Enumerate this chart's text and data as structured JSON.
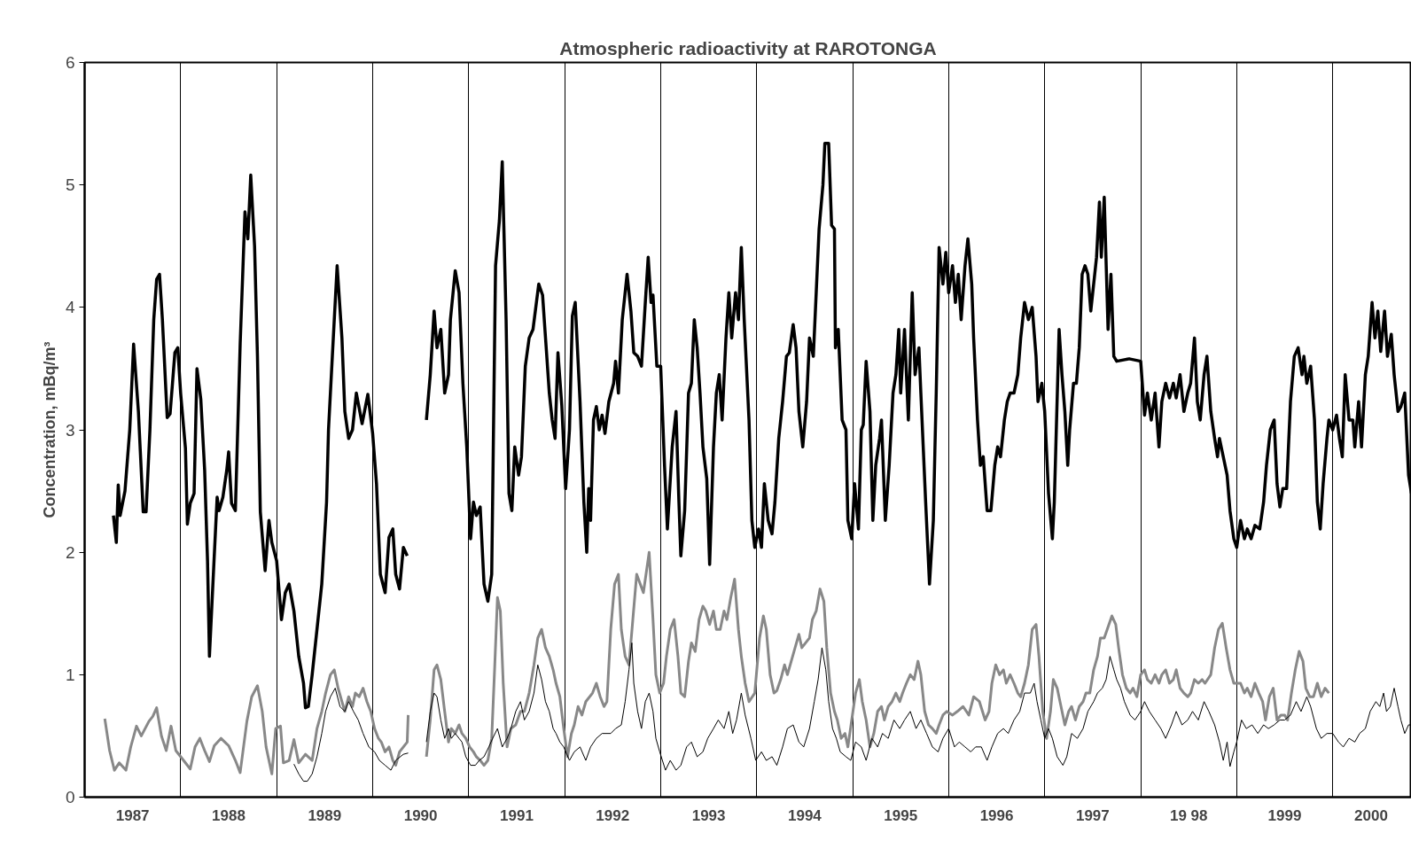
{
  "chart_data": {
    "type": "line",
    "title": "Atmospheric radioactivity at RAROTONGA",
    "ylabel": "Concentration, mBq/m³",
    "xlim": [
      1987,
      2000.82
    ],
    "ylim": [
      0,
      6
    ],
    "yticks": [
      0,
      1,
      2,
      3,
      4,
      5,
      6
    ],
    "xticks": [
      {
        "value": 1987.5,
        "label": "1987"
      },
      {
        "value": 1988.5,
        "label": "1988"
      },
      {
        "value": 1989.5,
        "label": "1989"
      },
      {
        "value": 1990.5,
        "label": "1990"
      },
      {
        "value": 1991.5,
        "label": "1991"
      },
      {
        "value": 1992.5,
        "label": "1992"
      },
      {
        "value": 1993.5,
        "label": "1993"
      },
      {
        "value": 1994.5,
        "label": "1994"
      },
      {
        "value": 1995.5,
        "label": "1995"
      },
      {
        "value": 1996.5,
        "label": "1996"
      },
      {
        "value": 1997.5,
        "label": "1997"
      },
      {
        "value": 1998.5,
        "label": "19 98"
      },
      {
        "value": 1999.5,
        "label": "1999"
      },
      {
        "value": 2000.4,
        "label": "2000"
      },
      {
        "value": 1988,
        "label": null
      },
      {
        "value": 1989,
        "label": null
      },
      {
        "value": 1990,
        "label": null
      },
      {
        "value": 1991,
        "label": null
      },
      {
        "value": 1992,
        "label": null
      },
      {
        "value": 1993,
        "label": null
      },
      {
        "value": 1994,
        "label": null
      },
      {
        "value": 1995,
        "label": null
      },
      {
        "value": 1996,
        "label": null
      },
      {
        "value": 1997,
        "label": null
      },
      {
        "value": 1998,
        "label": null
      },
      {
        "value": 1999,
        "label": null
      },
      {
        "value": 2000,
        "label": null
      }
    ],
    "grid": "x",
    "marker": "none",
    "line_style": "solid",
    "series": [
      {
        "color": "#000000",
        "x": [
          1987.3,
          1987.33,
          1987.35,
          1987.37,
          1987.42,
          1987.47,
          1987.51,
          1987.56,
          1987.61,
          1987.64,
          1987.68,
          1987.72,
          1987.75,
          1987.78,
          1987.81,
          1987.86,
          1987.89,
          1987.94,
          1987.97,
          1988.0,
          1988.05,
          1988.07,
          1988.1,
          1988.14,
          1988.17,
          1988.21,
          1988.25,
          1988.28,
          1988.3,
          1988.35,
          1988.38,
          1988.4,
          1988.44,
          1988.48,
          1988.5,
          1988.53,
          1988.57,
          1988.62,
          1988.67,
          1988.7,
          1988.73,
          1988.77,
          1988.8,
          1988.83,
          1988.88,
          1988.92,
          1988.95,
          1989.0,
          1989.05,
          1989.09,
          1989.13,
          1989.18,
          1989.23,
          1989.28,
          1989.3,
          1989.33,
          1989.37,
          1989.42,
          1989.47,
          1989.52,
          1989.54,
          1989.58,
          1989.63,
          1989.68,
          1989.71,
          1989.75,
          1989.79,
          1989.83,
          1989.89,
          1989.95,
          1990.0,
          1990.04,
          1990.08,
          1990.13,
          1990.17,
          1990.21,
          1990.24,
          1990.28,
          1990.32,
          1990.36,
          1990.46,
          1990.56,
          1990.6,
          1990.64,
          1990.67,
          1990.71,
          1990.75,
          1990.79,
          1990.81,
          1990.86,
          1990.9,
          1990.94,
          1990.98,
          1991.02,
          1991.05,
          1991.08,
          1991.12,
          1991.16,
          1991.2,
          1991.24,
          1991.28,
          1991.32,
          1991.35,
          1991.39,
          1991.42,
          1991.45,
          1991.48,
          1991.52,
          1991.55,
          1991.59,
          1991.63,
          1991.67,
          1991.73,
          1991.77,
          1991.84,
          1991.87,
          1991.9,
          1991.93,
          1991.97,
          1992.01,
          1992.05,
          1992.08,
          1992.11,
          1992.16,
          1992.2,
          1992.23,
          1992.25,
          1992.27,
          1992.3,
          1992.33,
          1992.36,
          1992.39,
          1992.42,
          1992.46,
          1992.51,
          1992.53,
          1992.56,
          1992.6,
          1992.65,
          1992.69,
          1992.72,
          1992.76,
          1992.8,
          1992.84,
          1992.87,
          1992.9,
          1992.92,
          1992.96,
          1993.0,
          1993.04,
          1993.07,
          1993.12,
          1993.16,
          1993.19,
          1993.21,
          1993.25,
          1993.29,
          1993.32,
          1993.35,
          1993.38,
          1993.41,
          1993.44,
          1993.48,
          1993.51,
          1993.55,
          1993.58,
          1993.61,
          1993.64,
          1993.68,
          1993.71,
          1993.74,
          1993.78,
          1993.81,
          1993.84,
          1993.87,
          1993.92,
          1993.95,
          1993.98,
          1994.02,
          1994.05,
          1994.08,
          1994.12,
          1994.16,
          1994.19,
          1994.23,
          1994.27,
          1994.31,
          1994.34,
          1994.38,
          1994.41,
          1994.44,
          1994.48,
          1994.52,
          1994.55,
          1994.59,
          1994.62,
          1994.65,
          1994.69,
          1994.71,
          1994.75,
          1994.78,
          1994.81,
          1994.82,
          1994.85,
          1994.89,
          1994.93,
          1994.95,
          1994.99,
          1995.02,
          1995.06,
          1995.09,
          1995.11,
          1995.14,
          1995.18,
          1995.21,
          1995.24,
          1995.28,
          1995.3,
          1995.34,
          1995.38,
          1995.42,
          1995.45,
          1995.48,
          1995.5,
          1995.54,
          1995.58,
          1995.62,
          1995.65,
          1995.69,
          1995.71,
          1995.76,
          1995.8,
          1995.84,
          1995.87,
          1995.9,
          1995.94,
          1995.97,
          1996.0,
          1996.04,
          1996.07,
          1996.1,
          1996.13,
          1996.17,
          1996.2,
          1996.24,
          1996.26,
          1996.3,
          1996.33,
          1996.36,
          1996.4,
          1996.44,
          1996.48,
          1996.51,
          1996.54,
          1996.58,
          1996.61,
          1996.64,
          1996.68,
          1996.72,
          1996.75,
          1996.79,
          1996.83,
          1996.87,
          1996.91,
          1996.93,
          1996.97,
          1997.0,
          1997.04,
          1997.08,
          1997.1,
          1997.15,
          1997.18,
          1997.21,
          1997.24,
          1997.26,
          1997.3,
          1997.33,
          1997.36,
          1997.39,
          1997.42,
          1997.45,
          1997.48,
          1997.51,
          1997.54,
          1997.57,
          1997.59,
          1997.62,
          1997.66,
          1997.69,
          1997.72,
          1997.75,
          1997.88,
          1998.0,
          1998.04,
          1998.07,
          1998.11,
          1998.15,
          1998.19,
          1998.22,
          1998.26,
          1998.3,
          1998.34,
          1998.37,
          1998.41,
          1998.45,
          1998.49,
          1998.52,
          1998.56,
          1998.59,
          1998.62,
          1998.66,
          1998.69,
          1998.73,
          1998.77,
          1998.8,
          1998.82,
          1998.86,
          1998.9,
          1998.93,
          1998.97,
          1999.0,
          1999.04,
          1999.08,
          1999.11,
          1999.15,
          1999.19,
          1999.24,
          1999.28,
          1999.31,
          1999.35,
          1999.39,
          1999.42,
          1999.45,
          1999.48,
          1999.52,
          1999.56,
          1999.6,
          1999.64,
          1999.68,
          1999.7,
          1999.73,
          1999.77,
          1999.81,
          1999.84,
          1999.87,
          1999.9,
          1999.94,
          1999.96,
          2000.0,
          2000.04,
          2000.07,
          2000.1,
          2000.13,
          2000.17,
          2000.21,
          2000.23,
          2000.27,
          2000.3,
          2000.34,
          2000.37,
          2000.41,
          2000.44,
          2000.47,
          2000.5,
          2000.54,
          2000.57,
          2000.61,
          2000.64,
          2000.68,
          2000.71,
          2000.75,
          2000.79,
          2000.82
        ],
        "values": [
          2.3,
          2.08,
          2.55,
          2.3,
          2.5,
          3.0,
          3.7,
          3.15,
          2.33,
          2.33,
          3.0,
          3.9,
          4.23,
          4.27,
          3.9,
          3.1,
          3.13,
          3.63,
          3.67,
          3.3,
          2.85,
          2.23,
          2.4,
          2.48,
          3.5,
          3.25,
          2.67,
          1.93,
          1.15,
          1.97,
          2.45,
          2.34,
          2.45,
          2.67,
          2.82,
          2.4,
          2.34,
          3.7,
          4.78,
          4.56,
          5.08,
          4.5,
          3.6,
          2.33,
          1.85,
          2.26,
          2.08,
          1.93,
          1.45,
          1.67,
          1.74,
          1.52,
          1.15,
          0.93,
          0.73,
          0.74,
          1.0,
          1.37,
          1.74,
          2.41,
          3.0,
          3.6,
          4.34,
          3.75,
          3.15,
          2.93,
          3.0,
          3.3,
          3.05,
          3.29,
          2.97,
          2.56,
          1.82,
          1.67,
          2.12,
          2.19,
          1.82,
          1.7,
          2.04,
          1.97,
          null,
          3.08,
          3.45,
          3.97,
          3.67,
          3.82,
          3.3,
          3.45,
          3.9,
          4.3,
          4.12,
          3.38,
          2.86,
          2.11,
          2.41,
          2.3,
          2.37,
          1.74,
          1.6,
          1.82,
          4.34,
          4.71,
          5.19,
          3.9,
          2.48,
          2.34,
          2.86,
          2.63,
          2.78,
          3.52,
          3.75,
          3.82,
          4.19,
          4.1,
          3.3,
          3.08,
          2.93,
          3.63,
          3.2,
          2.52,
          3.0,
          3.93,
          4.04,
          3.23,
          2.41,
          2.0,
          2.52,
          2.26,
          3.08,
          3.19,
          3.0,
          3.12,
          2.97,
          3.23,
          3.38,
          3.56,
          3.3,
          3.9,
          4.27,
          3.97,
          3.63,
          3.6,
          3.52,
          4.04,
          4.41,
          4.04,
          4.1,
          3.52,
          3.52,
          2.71,
          2.19,
          2.86,
          3.15,
          2.41,
          1.97,
          2.34,
          3.3,
          3.38,
          3.9,
          3.67,
          3.3,
          2.86,
          2.6,
          1.9,
          2.86,
          3.3,
          3.45,
          3.08,
          3.75,
          4.12,
          3.75,
          4.12,
          3.9,
          4.49,
          3.9,
          3.08,
          2.26,
          2.04,
          2.19,
          2.04,
          2.56,
          2.26,
          2.15,
          2.41,
          2.93,
          3.23,
          3.6,
          3.63,
          3.86,
          3.67,
          3.15,
          2.86,
          3.23,
          3.75,
          3.6,
          4.12,
          4.64,
          5.0,
          5.34,
          5.34,
          4.67,
          4.64,
          3.67,
          3.82,
          3.08,
          3.0,
          2.26,
          2.11,
          2.56,
          2.19,
          3.0,
          3.04,
          3.56,
          3.15,
          2.26,
          2.71,
          2.93,
          3.08,
          2.26,
          2.71,
          3.3,
          3.45,
          3.82,
          3.3,
          3.82,
          3.08,
          4.12,
          3.45,
          3.67,
          3.3,
          2.41,
          1.74,
          2.26,
          3.3,
          4.49,
          4.19,
          4.45,
          4.12,
          4.34,
          4.04,
          4.27,
          3.9,
          4.34,
          4.56,
          4.19,
          3.75,
          3.08,
          2.71,
          2.78,
          2.34,
          2.34,
          2.71,
          2.86,
          2.78,
          3.08,
          3.23,
          3.3,
          3.3,
          3.45,
          3.75,
          4.04,
          3.9,
          4.0,
          3.6,
          3.23,
          3.38,
          3.15,
          2.48,
          2.11,
          2.41,
          3.82,
          3.45,
          3.15,
          2.71,
          3.0,
          3.38,
          3.38,
          3.67,
          4.27,
          4.34,
          4.27,
          3.97,
          4.19,
          4.41,
          4.86,
          4.41,
          4.9,
          3.82,
          4.27,
          3.6,
          3.56,
          3.58,
          3.56,
          3.12,
          3.3,
          3.08,
          3.3,
          2.86,
          3.23,
          3.38,
          3.26,
          3.38,
          3.26,
          3.45,
          3.15,
          3.3,
          3.38,
          3.75,
          3.23,
          3.08,
          3.45,
          3.6,
          3.15,
          2.93,
          2.78,
          2.93,
          2.78,
          2.63,
          2.34,
          2.11,
          2.04,
          2.26,
          2.11,
          2.19,
          2.11,
          2.22,
          2.19,
          2.41,
          2.71,
          3.0,
          3.08,
          2.56,
          2.37,
          2.52,
          2.52,
          3.23,
          3.6,
          3.67,
          3.45,
          3.6,
          3.38,
          3.52,
          3.08,
          2.41,
          2.19,
          2.56,
          2.93,
          3.08,
          3.0,
          3.12,
          2.93,
          2.78,
          3.45,
          3.08,
          3.08,
          2.86,
          3.23,
          2.86,
          3.45,
          3.6,
          4.04,
          3.75,
          3.97,
          3.64,
          3.97,
          3.6,
          3.78,
          3.45,
          3.15,
          3.19,
          3.3,
          2.63,
          2.48
        ]
      },
      {
        "color": "#888888",
        "x": [
          1987.21,
          1987.26,
          1987.31,
          1987.36,
          1987.43,
          1987.48,
          1987.54,
          1987.59,
          1987.67,
          1987.71,
          1987.75,
          1987.8,
          1987.85,
          1987.9,
          1987.95,
          1988.03,
          1988.1,
          1988.15,
          1988.2,
          1988.25,
          1988.3,
          1988.35,
          1988.42,
          1988.5,
          1988.57,
          1988.62,
          1988.69,
          1988.74,
          1988.8,
          1988.85,
          1988.89,
          1988.95,
          1988.99,
          1989.04,
          1989.07,
          1989.13,
          1989.18,
          1989.23,
          1989.3,
          1989.37,
          1989.42,
          1989.47,
          1989.51,
          1989.56,
          1989.6,
          1989.64,
          1989.68,
          1989.71,
          1989.75,
          1989.79,
          1989.82,
          1989.86,
          1989.9,
          1989.94,
          1989.98,
          1990.02,
          1990.06,
          1990.09,
          1990.13,
          1990.17,
          1990.21,
          1990.24,
          1990.28,
          1990.32,
          1990.36,
          1990.37,
          1990.46,
          1990.56,
          1990.6,
          1990.64,
          1990.67,
          1990.71,
          1990.75,
          1990.79,
          1990.82,
          1990.86,
          1990.9,
          1990.93,
          1990.97,
          1991.01,
          1991.05,
          1991.08,
          1991.12,
          1991.16,
          1991.2,
          1991.24,
          1991.27,
          1991.3,
          1991.33,
          1991.36,
          1991.4,
          1991.44,
          1991.49,
          1991.54,
          1991.58,
          1991.63,
          1991.68,
          1991.72,
          1991.76,
          1991.8,
          1991.84,
          1991.88,
          1991.91,
          1991.95,
          1991.99,
          1992.03,
          1992.07,
          1992.1,
          1992.14,
          1992.18,
          1992.22,
          1992.29,
          1992.33,
          1992.37,
          1992.41,
          1992.44,
          1992.48,
          1992.52,
          1992.56,
          1992.59,
          1992.63,
          1992.67,
          1992.71,
          1992.75,
          1992.82,
          1992.88,
          1992.92,
          1992.95,
          1992.99,
          1993.03,
          1993.06,
          1993.1,
          1993.14,
          1993.18,
          1993.21,
          1993.25,
          1993.29,
          1993.32,
          1993.36,
          1993.4,
          1993.44,
          1993.47,
          1993.51,
          1993.55,
          1993.58,
          1993.62,
          1993.66,
          1993.69,
          1993.73,
          1993.77,
          1993.81,
          1993.84,
          1993.88,
          1993.92,
          1993.98,
          1994.03,
          1994.07,
          1994.1,
          1994.14,
          1994.18,
          1994.21,
          1994.25,
          1994.29,
          1994.32,
          1994.36,
          1994.4,
          1994.44,
          1994.47,
          1994.51,
          1994.55,
          1994.58,
          1994.62,
          1994.66,
          1994.7,
          1994.73,
          1994.77,
          1994.81,
          1994.84,
          1994.88,
          1994.92,
          1994.95,
          1994.99,
          1995.03,
          1995.07,
          1995.1,
          1995.14,
          1995.18,
          1995.22,
          1995.26,
          1995.3,
          1995.33,
          1995.37,
          1995.41,
          1995.45,
          1995.49,
          1995.52,
          1995.56,
          1995.6,
          1995.64,
          1995.68,
          1995.71,
          1995.75,
          1995.79,
          1995.83,
          1995.87,
          1995.9,
          1995.94,
          1995.98,
          1996.04,
          1996.09,
          1996.15,
          1996.21,
          1996.26,
          1996.32,
          1996.38,
          1996.42,
          1996.45,
          1996.49,
          1996.53,
          1996.57,
          1996.6,
          1996.64,
          1996.68,
          1996.72,
          1996.75,
          1996.79,
          1996.83,
          1996.87,
          1996.91,
          1996.94,
          1996.98,
          1997.02,
          1997.06,
          1997.09,
          1997.13,
          1997.17,
          1997.21,
          1997.25,
          1997.28,
          1997.32,
          1997.36,
          1997.4,
          1997.43,
          1997.47,
          1997.51,
          1997.55,
          1997.58,
          1997.62,
          1997.7,
          1997.74,
          1997.77,
          1997.81,
          1997.85,
          1997.89,
          1997.92,
          1997.96,
          1998.0,
          1998.04,
          1998.07,
          1998.11,
          1998.15,
          1998.19,
          1998.22,
          1998.26,
          1998.3,
          1998.34,
          1998.37,
          1998.41,
          1998.45,
          1998.49,
          1998.52,
          1998.56,
          1998.6,
          1998.64,
          1998.67,
          1998.73,
          1998.77,
          1998.81,
          1998.85,
          1998.89,
          1998.93,
          1998.97,
          1999.04,
          1999.08,
          1999.11,
          1999.15,
          1999.19,
          1999.23,
          1999.27,
          1999.3,
          1999.34,
          1999.38,
          1999.42,
          1999.46,
          1999.5,
          1999.53,
          1999.57,
          1999.61,
          1999.65,
          1999.69,
          1999.72,
          1999.76,
          1999.8,
          1999.84,
          1999.88,
          1999.92,
          1999.96
        ],
        "values": [
          0.64,
          0.38,
          0.22,
          0.28,
          0.22,
          0.41,
          0.58,
          0.5,
          0.62,
          0.66,
          0.73,
          0.5,
          0.38,
          0.58,
          0.38,
          0.3,
          0.23,
          0.41,
          0.48,
          0.38,
          0.29,
          0.42,
          0.48,
          0.42,
          0.3,
          0.2,
          0.62,
          0.82,
          0.91,
          0.7,
          0.41,
          0.19,
          0.56,
          0.58,
          0.28,
          0.3,
          0.47,
          0.28,
          0.35,
          0.3,
          0.56,
          0.7,
          0.85,
          1.0,
          1.04,
          0.89,
          0.78,
          0.7,
          0.82,
          0.74,
          0.85,
          0.82,
          0.89,
          0.78,
          0.7,
          0.56,
          0.48,
          0.45,
          0.37,
          0.41,
          0.3,
          0.26,
          0.37,
          0.41,
          0.45,
          0.67,
          null,
          0.33,
          0.63,
          1.04,
          1.08,
          0.96,
          0.7,
          0.45,
          0.56,
          0.52,
          0.59,
          0.52,
          0.48,
          0.41,
          0.37,
          0.33,
          0.3,
          0.26,
          0.3,
          0.48,
          1.04,
          1.63,
          1.52,
          0.93,
          0.41,
          0.56,
          0.59,
          0.7,
          0.7,
          0.85,
          1.08,
          1.3,
          1.37,
          1.22,
          1.15,
          1.04,
          0.93,
          0.82,
          0.56,
          0.33,
          0.52,
          0.59,
          0.74,
          0.67,
          0.78,
          0.85,
          0.93,
          0.82,
          0.74,
          0.78,
          1.37,
          1.74,
          1.82,
          1.37,
          1.15,
          1.08,
          1.45,
          1.82,
          1.67,
          2.0,
          1.45,
          1.0,
          0.85,
          0.93,
          1.15,
          1.37,
          1.45,
          1.15,
          0.85,
          0.82,
          1.11,
          1.26,
          1.19,
          1.45,
          1.56,
          1.52,
          1.41,
          1.52,
          1.37,
          1.37,
          1.52,
          1.45,
          1.63,
          1.78,
          1.37,
          1.15,
          0.93,
          0.78,
          0.85,
          1.3,
          1.48,
          1.37,
          1.0,
          0.85,
          0.87,
          0.96,
          1.08,
          1.0,
          1.11,
          1.22,
          1.33,
          1.22,
          1.26,
          1.3,
          1.45,
          1.52,
          1.7,
          1.6,
          1.22,
          0.85,
          0.7,
          0.63,
          0.48,
          0.52,
          0.41,
          0.63,
          0.85,
          0.96,
          0.78,
          0.63,
          0.41,
          0.52,
          0.7,
          0.74,
          0.63,
          0.74,
          0.78,
          0.85,
          0.78,
          0.85,
          0.93,
          1.0,
          0.96,
          1.11,
          1.0,
          0.7,
          0.59,
          0.56,
          0.52,
          0.59,
          0.67,
          0.7,
          0.67,
          0.7,
          0.74,
          0.67,
          0.82,
          0.78,
          0.63,
          0.7,
          0.93,
          1.08,
          1.0,
          1.04,
          0.93,
          1.0,
          0.93,
          0.85,
          0.82,
          0.93,
          1.08,
          1.37,
          1.41,
          1.15,
          0.7,
          0.48,
          0.7,
          0.96,
          0.89,
          0.74,
          0.59,
          0.7,
          0.74,
          0.63,
          0.74,
          0.78,
          0.85,
          0.85,
          1.04,
          1.15,
          1.3,
          1.3,
          1.48,
          1.41,
          1.22,
          1.0,
          0.89,
          0.85,
          0.89,
          0.82,
          1.0,
          1.04,
          0.96,
          0.93,
          1.0,
          0.93,
          1.0,
          1.04,
          0.93,
          0.96,
          1.04,
          0.89,
          0.85,
          0.82,
          0.85,
          0.96,
          0.93,
          0.96,
          0.93,
          1.0,
          1.22,
          1.37,
          1.42,
          1.22,
          1.04,
          0.93,
          0.93,
          0.85,
          0.89,
          0.82,
          0.93,
          0.85,
          0.78,
          0.63,
          0.82,
          0.89,
          0.63,
          0.67,
          0.67,
          0.63,
          0.85,
          1.04,
          1.19,
          1.11,
          0.89,
          0.82,
          0.82,
          0.93,
          0.82,
          0.89,
          0.85
        ]
      },
      {
        "color": "#000000",
        "x": [
          1989.18,
          1989.23,
          1989.28,
          1989.32,
          1989.37,
          1989.42,
          1989.47,
          1989.51,
          1989.56,
          1989.61,
          1989.66,
          1989.71,
          1989.75,
          1989.8,
          1989.85,
          1989.9,
          1989.96,
          1990.02,
          1990.07,
          1990.13,
          1990.19,
          1990.24,
          1990.32,
          1990.37,
          1990.46,
          1990.56,
          1990.6,
          1990.64,
          1990.67,
          1990.71,
          1990.75,
          1990.79,
          1990.82,
          1990.86,
          1990.9,
          1990.93,
          1990.97,
          1991.02,
          1991.07,
          1991.11,
          1991.16,
          1991.21,
          1991.25,
          1991.3,
          1991.35,
          1991.4,
          1991.44,
          1991.49,
          1991.54,
          1991.58,
          1991.63,
          1991.68,
          1991.72,
          1991.76,
          1991.8,
          1991.84,
          1991.88,
          1991.91,
          1991.95,
          1991.99,
          1992.05,
          1992.1,
          1992.16,
          1992.22,
          1992.27,
          1992.33,
          1992.39,
          1992.48,
          1992.53,
          1992.59,
          1992.63,
          1992.67,
          1992.7,
          1992.72,
          1992.76,
          1992.8,
          1992.84,
          1992.88,
          1992.92,
          1992.95,
          1992.99,
          1993.05,
          1993.1,
          1993.16,
          1993.21,
          1993.27,
          1993.32,
          1993.38,
          1993.44,
          1993.49,
          1993.55,
          1993.6,
          1993.66,
          1993.71,
          1993.75,
          1993.79,
          1993.84,
          1993.88,
          1993.94,
          1993.99,
          1994.05,
          1994.1,
          1994.16,
          1994.21,
          1994.27,
          1994.32,
          1994.38,
          1994.44,
          1994.49,
          1994.55,
          1994.6,
          1994.64,
          1994.68,
          1994.72,
          1994.75,
          1994.79,
          1994.83,
          1994.87,
          1994.93,
          1994.98,
          1995.03,
          1995.09,
          1995.14,
          1995.2,
          1995.26,
          1995.31,
          1995.37,
          1995.43,
          1995.49,
          1995.54,
          1995.6,
          1995.66,
          1995.71,
          1995.77,
          1995.83,
          1995.89,
          1995.94,
          1996.0,
          1996.06,
          1996.11,
          1996.17,
          1996.23,
          1996.28,
          1996.34,
          1996.4,
          1996.45,
          1996.51,
          1996.57,
          1996.62,
          1996.68,
          1996.74,
          1996.79,
          1996.85,
          1996.89,
          1996.92,
          1996.96,
          1997.0,
          1997.04,
          1997.08,
          1997.13,
          1997.19,
          1997.23,
          1997.28,
          1997.34,
          1997.4,
          1997.45,
          1997.51,
          1997.55,
          1997.6,
          1997.64,
          1997.68,
          1997.72,
          1997.75,
          1997.79,
          1997.83,
          1997.89,
          1997.94,
          1998.0,
          1998.04,
          1998.09,
          1998.15,
          1998.21,
          1998.26,
          1998.32,
          1998.37,
          1998.43,
          1998.49,
          1998.54,
          1998.6,
          1998.66,
          1998.71,
          1998.77,
          1998.82,
          1998.86,
          1998.9,
          1998.93,
          1998.97,
          1999.0,
          1999.05,
          1999.1,
          1999.16,
          1999.22,
          1999.28,
          1999.33,
          1999.39,
          1999.45,
          1999.5,
          1999.56,
          1999.62,
          1999.67,
          1999.73,
          1999.77,
          1999.83,
          1999.88,
          1999.94,
          2000.0,
          2000.06,
          2000.11,
          2000.17,
          2000.23,
          2000.28,
          2000.34,
          2000.39,
          2000.45,
          2000.49,
          2000.53,
          2000.56,
          2000.6,
          2000.64,
          2000.68,
          2000.71,
          2000.75,
          2000.79,
          2000.82
        ],
        "values": [
          0.27,
          0.19,
          0.13,
          0.13,
          0.19,
          0.33,
          0.52,
          0.7,
          0.82,
          0.89,
          0.74,
          0.7,
          0.78,
          0.7,
          0.63,
          0.52,
          0.41,
          0.37,
          0.3,
          0.26,
          0.22,
          0.3,
          0.35,
          0.36,
          null,
          0.45,
          0.7,
          0.85,
          0.82,
          0.63,
          0.48,
          0.56,
          0.48,
          0.52,
          0.48,
          0.45,
          0.33,
          0.26,
          0.26,
          0.3,
          0.33,
          0.41,
          0.48,
          0.56,
          0.41,
          0.48,
          0.56,
          0.7,
          0.78,
          0.63,
          0.7,
          0.85,
          1.08,
          0.96,
          0.78,
          0.7,
          0.56,
          0.52,
          0.45,
          0.41,
          0.3,
          0.37,
          0.41,
          0.3,
          0.41,
          0.48,
          0.52,
          0.52,
          0.56,
          0.59,
          0.78,
          1.04,
          1.26,
          0.93,
          0.7,
          0.56,
          0.78,
          0.85,
          0.7,
          0.48,
          0.37,
          0.22,
          0.3,
          0.22,
          0.26,
          0.41,
          0.45,
          0.33,
          0.37,
          0.48,
          0.56,
          0.63,
          0.56,
          0.7,
          0.52,
          0.63,
          0.85,
          0.67,
          0.48,
          0.3,
          0.37,
          0.3,
          0.33,
          0.26,
          0.41,
          0.56,
          0.59,
          0.45,
          0.41,
          0.56,
          0.78,
          0.96,
          1.22,
          1.04,
          0.78,
          0.56,
          0.48,
          0.37,
          0.33,
          0.3,
          0.45,
          0.41,
          0.3,
          0.48,
          0.41,
          0.52,
          0.48,
          0.63,
          0.56,
          0.63,
          0.7,
          0.56,
          0.63,
          0.52,
          0.41,
          0.37,
          0.48,
          0.56,
          0.41,
          0.45,
          0.41,
          0.37,
          0.41,
          0.41,
          0.3,
          0.41,
          0.52,
          0.56,
          0.52,
          0.63,
          0.7,
          0.85,
          0.85,
          0.93,
          0.78,
          0.63,
          0.48,
          0.56,
          0.48,
          0.33,
          0.26,
          0.33,
          0.52,
          0.48,
          0.56,
          0.7,
          0.78,
          0.85,
          0.89,
          0.96,
          1.15,
          1.04,
          0.96,
          0.89,
          0.78,
          0.67,
          0.63,
          0.7,
          0.78,
          0.7,
          0.63,
          0.56,
          0.48,
          0.59,
          0.7,
          0.59,
          0.63,
          0.7,
          0.63,
          0.78,
          0.7,
          0.59,
          0.45,
          0.3,
          0.45,
          0.25,
          0.37,
          0.45,
          0.63,
          0.56,
          0.59,
          0.52,
          0.59,
          0.56,
          0.59,
          0.63,
          0.63,
          0.67,
          0.78,
          0.7,
          0.82,
          0.74,
          0.56,
          0.48,
          0.52,
          0.52,
          0.45,
          0.41,
          0.48,
          0.45,
          0.52,
          0.56,
          0.7,
          0.78,
          0.74,
          0.85,
          0.7,
          0.74,
          0.89,
          0.74,
          0.63,
          0.52,
          0.59,
          0.59
        ]
      }
    ]
  }
}
